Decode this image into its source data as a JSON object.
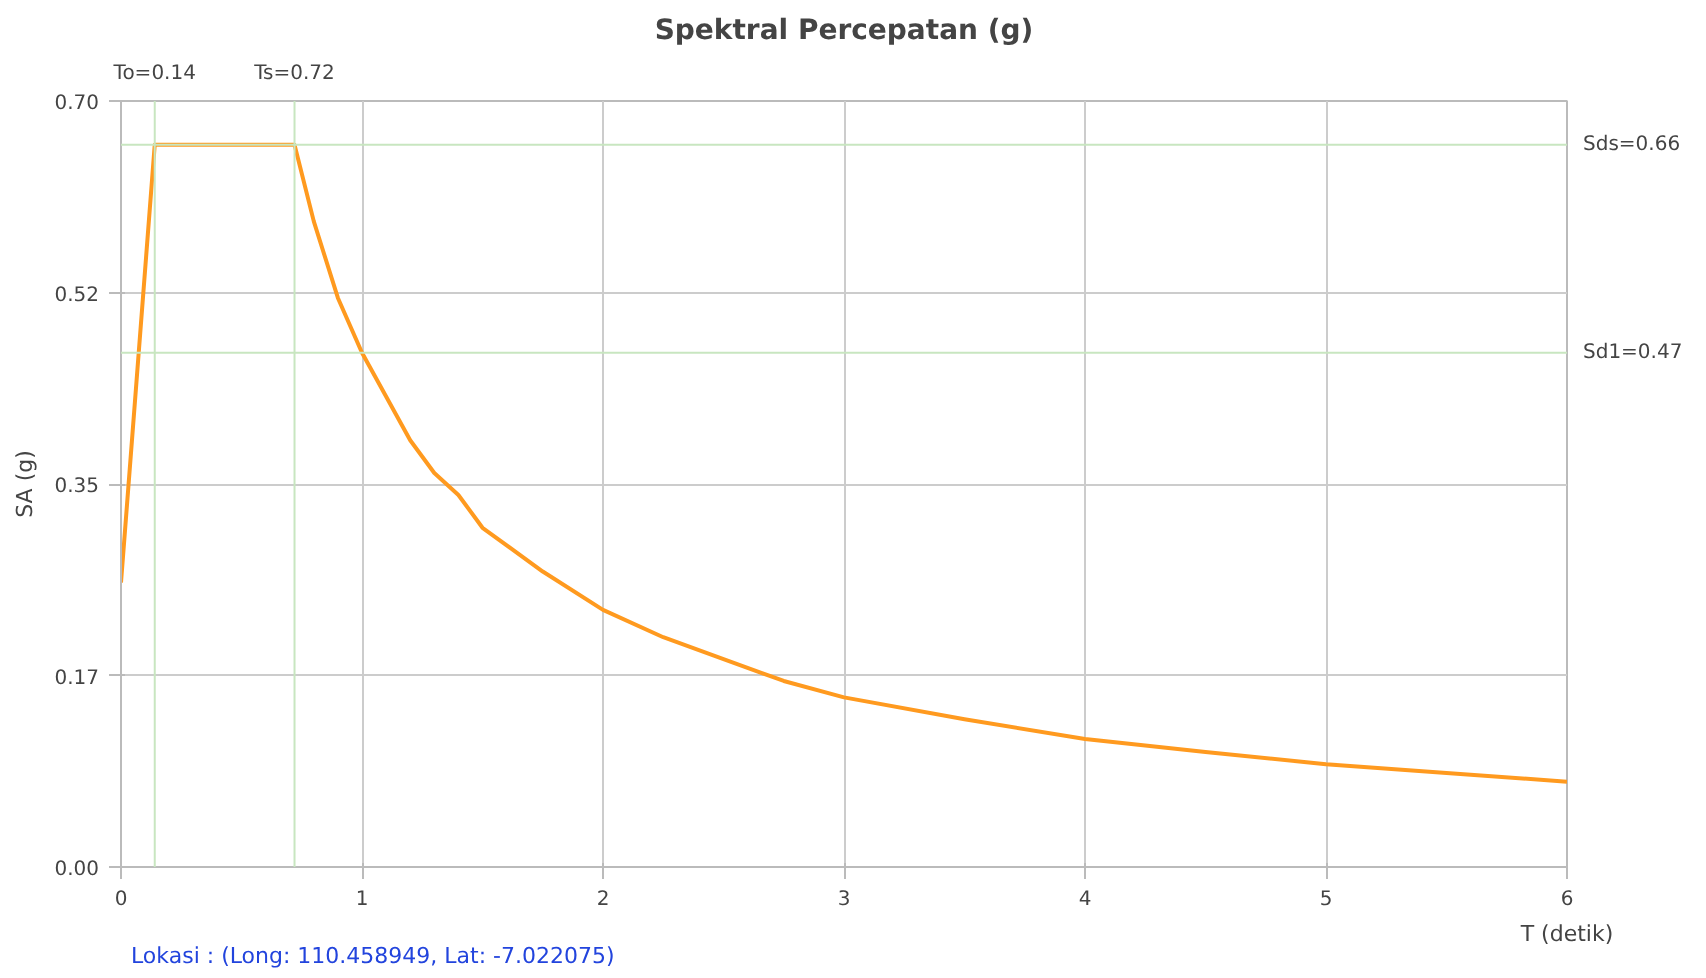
{
  "chart_data": {
    "type": "line",
    "title": "Spektral Percepatan (g)",
    "xlabel": "T (detik)",
    "ylabel": "SA (g)",
    "x": [
      0,
      0.14,
      0.72,
      0.8,
      0.9,
      1,
      1.1,
      1.2,
      1.3,
      1.4,
      1.5,
      1.75,
      2,
      2.25,
      2.5,
      2.75,
      3,
      3.5,
      4,
      4.5,
      5,
      5.5,
      6
    ],
    "series": [
      {
        "color": "#ff9a1f",
        "values": [
          0.26,
          0.66,
          0.66,
          0.59,
          0.52,
          0.47,
          0.43,
          0.39,
          0.36,
          0.34,
          0.31,
          0.27,
          0.235,
          0.21,
          0.19,
          0.17,
          0.155,
          0.135,
          0.117,
          0.105,
          0.094,
          0.086,
          0.078
        ]
      }
    ],
    "xlim": [
      0,
      6
    ],
    "ylim": [
      0,
      0.7
    ],
    "xticks": [
      0,
      1,
      2,
      3,
      4,
      5,
      6
    ],
    "yticks": [
      {
        "value": 0,
        "label": "0.00"
      },
      {
        "value": 0.175,
        "label": "0.17"
      },
      {
        "value": 0.35,
        "label": "0.35"
      },
      {
        "value": 0.525,
        "label": "0.52"
      },
      {
        "value": 0.7,
        "label": "0.70"
      }
    ],
    "grid": true,
    "marker": "none",
    "line_style": "solid",
    "ref_lines": [
      {
        "axis": "x",
        "value": 0.14,
        "label": "To=0.14",
        "color": "#c8e6c0"
      },
      {
        "axis": "x",
        "value": 0.72,
        "label": "Ts=0.72",
        "color": "#c8e6c0"
      },
      {
        "axis": "y",
        "value": 0.66,
        "label": "Sds=0.66",
        "color": "#c8e6c0"
      },
      {
        "axis": "y",
        "value": 0.47,
        "label": "Sd1=0.47",
        "color": "#c8e6c0"
      }
    ],
    "annotations": [
      "Lokasi :  (Long: 110.458949, Lat: -7.022075)"
    ]
  }
}
